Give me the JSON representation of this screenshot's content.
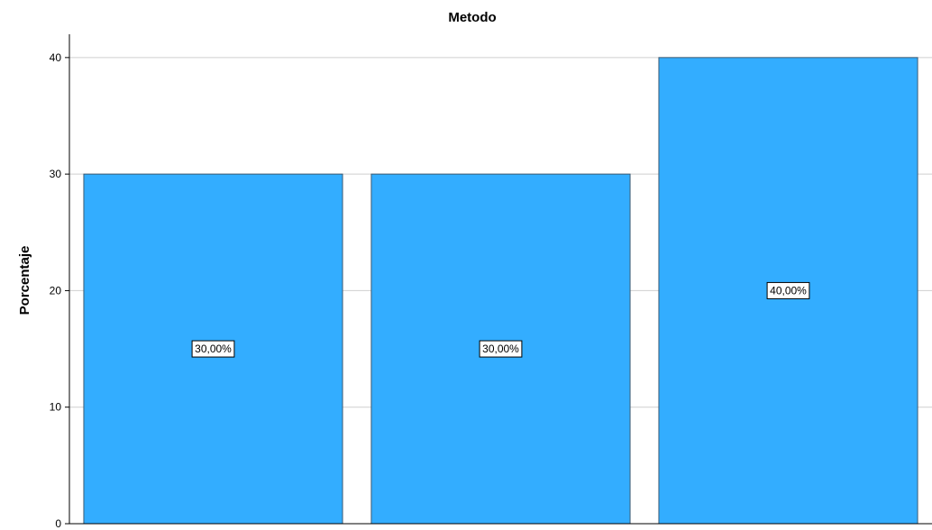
{
  "chart_data": {
    "type": "bar",
    "title": "Metodo",
    "xlabel": "",
    "ylabel": "Porcentaje",
    "categories": [
      "",
      "",
      ""
    ],
    "values": [
      30,
      30,
      40
    ],
    "data_labels": [
      "30,00%",
      "30,00%",
      "40,00%"
    ],
    "ylim": [
      0,
      42
    ],
    "yticks": [
      0,
      10,
      20,
      30,
      40
    ],
    "grid": true,
    "bar_color": "#33ADFF",
    "bar_edge_color": "#3C5A72"
  }
}
